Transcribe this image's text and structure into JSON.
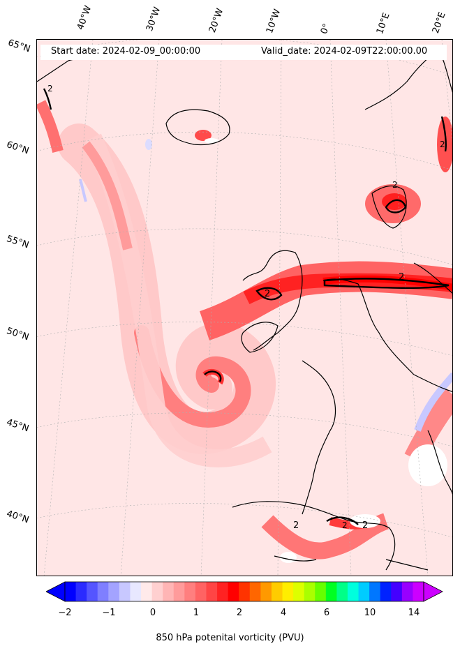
{
  "header": {
    "start_date": "Start date: 2024-02-09_00:00:00",
    "valid_date": "Valid_date: 2024-02-09T22:00:00.00"
  },
  "longitude_labels": [
    "40°W",
    "30°W",
    "20°W",
    "10°W",
    "0°",
    "10°E",
    "20°E"
  ],
  "latitude_labels": [
    "65°N",
    "60°N",
    "55°N",
    "50°N",
    "45°N",
    "40°N"
  ],
  "contour_labels": [
    "2",
    "2",
    "2",
    "2",
    "2",
    "2",
    "2",
    "2"
  ],
  "colorbar": {
    "label": "850 hPa potenital vorticity (PVU)",
    "tick_labels": [
      "−2",
      "−1",
      "0",
      "1",
      "2",
      "4",
      "6",
      "10",
      "14"
    ],
    "colors": [
      "#0000ff",
      "#2b2bff",
      "#5555ff",
      "#7f7fff",
      "#a3a3ff",
      "#c8c8ff",
      "#e8e8ff",
      "#ffeaea",
      "#ffd0d0",
      "#ffb5b5",
      "#ff9b9b",
      "#ff7f7f",
      "#ff6363",
      "#ff4545",
      "#ff2222",
      "#ff0000",
      "#ff3300",
      "#ff6600",
      "#ff9900",
      "#ffcc00",
      "#ffee00",
      "#ddff00",
      "#aaff00",
      "#66ff00",
      "#00ff22",
      "#00ff88",
      "#00ffdd",
      "#00ccff",
      "#0077ff",
      "#0022ff",
      "#4400ff",
      "#9900ff",
      "#cc00ff"
    ]
  }
}
